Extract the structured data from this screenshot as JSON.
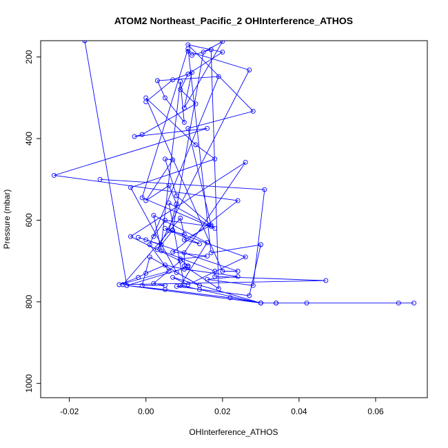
{
  "chart_data": {
    "type": "line",
    "title": "ATOM2 Northeast_Pacific_2 OHInterference_ATHOS",
    "xlabel": "OHInterference_ATHOS",
    "ylabel": "Pressure (mbar)",
    "xlim": [
      -0.0275,
      0.0735
    ],
    "ylim": [
      1035,
      160
    ],
    "y_reversed": true,
    "xticks": [
      -0.02,
      0.0,
      0.02,
      0.04,
      0.06
    ],
    "xtick_labels": [
      "-0.02",
      "0.00",
      "0.02",
      "0.04",
      "0.06"
    ],
    "yticks": [
      200,
      400,
      600,
      800,
      1000
    ],
    "ytick_labels": [
      "200",
      "400",
      "600",
      "800",
      "1000"
    ],
    "grid": false,
    "legend": "none",
    "color": "#0000ff",
    "series": [
      {
        "x": [
          -0.016,
          -0.005,
          0.005,
          0.022,
          0.03,
          0.034,
          0.042,
          0.066,
          0.07,
          0.034,
          0.03,
          -0.005,
          0.011,
          0.011,
          0.011,
          0.009,
          0.016,
          0.007,
          0.024,
          -0.024,
          0.016,
          -0.003,
          -0.001,
          0.013,
          0.009,
          0.011,
          0.02,
          0.011,
          0.028,
          0.011,
          0.017,
          0.01,
          0.014,
          0.005,
          0.026,
          0.011,
          0.007,
          0.03,
          0.014,
          0.009,
          0.016,
          0.002,
          0.004,
          0.018,
          0.018,
          0.047,
          -0.006,
          0.009,
          0.01,
          0.006,
          0.008,
          0.006,
          0.0,
          0.007,
          0.005,
          0.008,
          0.018,
          -0.001,
          0.011,
          0.017,
          0.03,
          0.027,
          0.008,
          0.01,
          0.006,
          0.017,
          0.005,
          0.002
        ],
        "y": [
          160,
          760,
          770,
          790,
          803,
          803,
          803,
          803,
          803,
          803,
          803,
          760,
          715,
          712,
          712,
          695,
          688,
          678,
          552,
          490,
          375,
          395,
          390,
          315,
          280,
          242,
          188,
          170,
          333,
          375,
          612,
          648,
          658,
          620,
          690,
          758,
          740,
          803,
          770,
          760,
          655,
          588,
          675,
          725,
          738,
          748,
          758,
          595,
          635,
          625,
          560,
          515,
          552,
          452,
          450,
          540,
          620,
          545,
          180,
          680,
          660,
          785,
          762,
          760,
          558,
          615,
          600,
          640
        ]
      },
      {
        "x": [
          -0.012,
          0.031,
          0.028,
          0.016,
          0.024,
          0.01,
          0.005,
          0.0,
          -0.002,
          -0.007,
          0.006,
          0.001,
          0.019,
          0.003,
          0.005,
          0.01,
          0.009,
          0.004,
          0.0,
          -0.002,
          0.024,
          0.02,
          0.0,
          0.013,
          0.018,
          -0.004,
          0.008,
          0.014,
          0.001,
          -0.001,
          0.005,
          0.002,
          0.009,
          -0.004,
          0.026,
          0.01,
          0.01,
          0.019,
          0.017,
          0.012,
          0.011,
          0.027,
          0.003,
          0.007,
          0.015,
          0.02,
          0.01,
          0.012,
          0.007,
          0.0
        ],
        "y": [
          500,
          525,
          760,
          745,
          738,
          720,
          710,
          730,
          740,
          758,
          725,
          660,
          248,
          258,
          300,
          360,
          260,
          660,
          648,
          642,
          725,
          725,
          300,
          415,
          450,
          520,
          728,
          760,
          690,
          760,
          760,
          755,
          700,
          640,
          458,
          680,
          712,
          768,
          182,
          196,
          186,
          232,
          672,
          625,
          188,
          162,
          325,
          238,
          256,
          310
        ]
      }
    ]
  }
}
